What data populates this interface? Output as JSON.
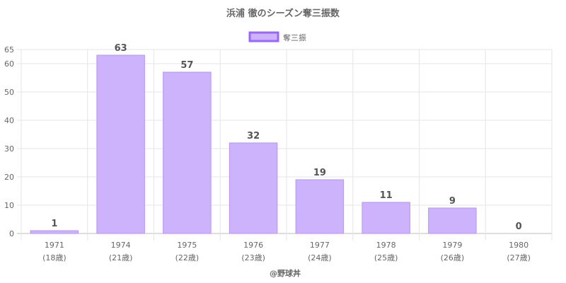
{
  "chart_data": {
    "type": "bar",
    "title": "浜浦 徹のシーズン奪三振数",
    "legend": {
      "position": "top",
      "label": "奪三振"
    },
    "categories": [
      "1971",
      "1974",
      "1975",
      "1976",
      "1977",
      "1978",
      "1979",
      "1980"
    ],
    "category_sublabels": [
      "(18歳)",
      "(21歳)",
      "(22歳)",
      "(23歳)",
      "(24歳)",
      "(25歳)",
      "(26歳)",
      "(27歳)"
    ],
    "series": [
      {
        "name": "奪三振",
        "values": [
          1,
          63,
          57,
          32,
          19,
          11,
          9,
          0
        ]
      }
    ],
    "ylim": [
      0,
      65
    ],
    "yticks": [
      0,
      10,
      20,
      30,
      40,
      50,
      60,
      65
    ],
    "grid": true,
    "colors": {
      "bar_fill": "#cdb3fc",
      "bar_stroke": "#b693fa",
      "legend_stroke": "#9966ff"
    },
    "credit": "@野球丼"
  }
}
